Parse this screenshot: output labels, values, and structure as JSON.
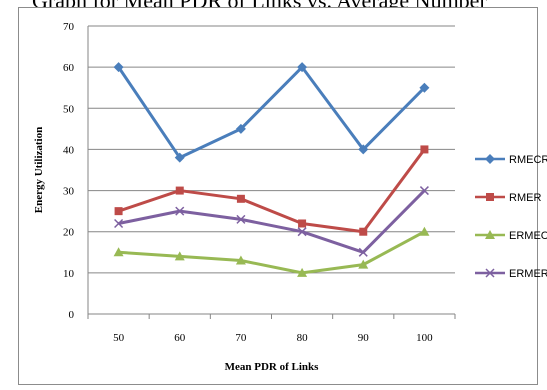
{
  "top_text": "Graph for Mean PDR of Links vs. Average Number",
  "chart_data": {
    "type": "line",
    "title": "",
    "xlabel": "Mean PDR of Links",
    "ylabel": "Energy  Utilization",
    "categories": [
      "50",
      "60",
      "70",
      "80",
      "90",
      "100"
    ],
    "ylim": [
      0,
      70
    ],
    "yticks": [
      0,
      10,
      20,
      30,
      40,
      50,
      60,
      70
    ],
    "grid": true,
    "legend_position": "right",
    "series": [
      {
        "name": "RMECR",
        "color": "#4a7ebb",
        "marker": "diamond",
        "values": [
          60,
          38,
          45,
          60,
          40,
          55
        ]
      },
      {
        "name": "RMER",
        "color": "#be4b48",
        "marker": "square",
        "values": [
          25,
          30,
          28,
          22,
          20,
          40
        ]
      },
      {
        "name": "ERMECR",
        "color": "#98b954",
        "marker": "triangle",
        "values": [
          15,
          14,
          13,
          10,
          12,
          20
        ]
      },
      {
        "name": "ERMER",
        "color": "#7d60a0",
        "marker": "x",
        "values": [
          22,
          25,
          23,
          20,
          15,
          30
        ]
      }
    ]
  }
}
